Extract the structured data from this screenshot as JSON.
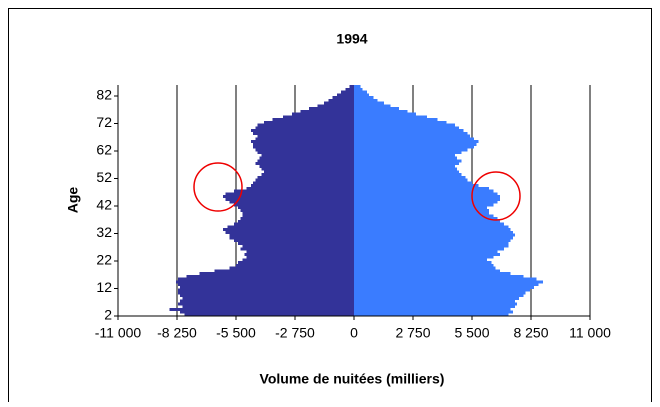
{
  "chart_data": {
    "type": "pyramid",
    "title": "1994",
    "xlabel": "Volume de nuitées (milliers)",
    "ylabel": "Age",
    "y": [
      2,
      3,
      4,
      5,
      6,
      7,
      8,
      9,
      10,
      11,
      12,
      13,
      14,
      15,
      16,
      17,
      18,
      19,
      20,
      21,
      22,
      23,
      24,
      25,
      26,
      27,
      28,
      29,
      30,
      31,
      32,
      33,
      34,
      35,
      36,
      37,
      38,
      39,
      40,
      41,
      42,
      43,
      44,
      45,
      46,
      47,
      48,
      49,
      50,
      51,
      52,
      53,
      54,
      55,
      56,
      57,
      58,
      59,
      60,
      61,
      62,
      63,
      64,
      65,
      66,
      67,
      68,
      69,
      70,
      71,
      72,
      73,
      74,
      75,
      76,
      77,
      78,
      79,
      80,
      81,
      82,
      83,
      84,
      85
    ],
    "series": [
      {
        "color": "#333399",
        "values": [
          -7900,
          -8100,
          -8600,
          -8000,
          -8200,
          -8100,
          -8000,
          -8100,
          -8200,
          -8200,
          -8100,
          -8200,
          -8300,
          -8200,
          -7800,
          -7200,
          -6500,
          -5800,
          -5500,
          -5400,
          -5200,
          -5000,
          -5100,
          -5000,
          -5300,
          -5200,
          -5400,
          -5600,
          -5800,
          -5800,
          -6000,
          -6100,
          -5900,
          -5600,
          -5400,
          -5300,
          -5200,
          -5200,
          -5300,
          -5400,
          -5600,
          -5800,
          -6000,
          -6100,
          -6000,
          -5600,
          -5000,
          -4800,
          -4700,
          -4600,
          -4500,
          -4300,
          -4200,
          -4300,
          -4400,
          -4600,
          -4500,
          -4400,
          -4300,
          -4500,
          -4600,
          -4700,
          -4700,
          -4800,
          -4600,
          -4500,
          -4700,
          -4800,
          -4600,
          -4500,
          -4200,
          -3800,
          -3300,
          -2900,
          -2500,
          -2100,
          -1700,
          -1400,
          -1200,
          -1000,
          -800,
          -600,
          -400,
          -200
        ]
      },
      {
        "color": "#3a7cff",
        "values": [
          7200,
          7400,
          7300,
          7500,
          7600,
          7500,
          7700,
          7900,
          8000,
          8200,
          8400,
          8600,
          8800,
          8500,
          7900,
          7300,
          6800,
          6600,
          6500,
          6400,
          6200,
          6500,
          6800,
          6700,
          7000,
          7200,
          7200,
          7300,
          7400,
          7500,
          7400,
          7300,
          7200,
          7000,
          6800,
          6700,
          6500,
          6300,
          6300,
          6200,
          6500,
          6700,
          6800,
          6800,
          6700,
          6500,
          6300,
          5800,
          5500,
          5300,
          5200,
          5000,
          4900,
          4800,
          4700,
          4900,
          5000,
          4800,
          4700,
          5000,
          5300,
          5600,
          5700,
          5800,
          5600,
          5400,
          5300,
          5100,
          4900,
          4700,
          4300,
          3900,
          3400,
          2900,
          2500,
          2100,
          1700,
          1400,
          1100,
          900,
          700,
          600,
          400,
          300
        ]
      }
    ],
    "xlim": [
      -11000,
      11000
    ],
    "xticks": [
      {
        "value": -11000,
        "label": "-11 000"
      },
      {
        "value": -8250,
        "label": "-8 250"
      },
      {
        "value": -5500,
        "label": "-5 500"
      },
      {
        "value": -2750,
        "label": "-2 750"
      },
      0,
      {
        "value": 2750,
        "label": "2 750"
      },
      {
        "value": 5500,
        "label": "5 500"
      },
      {
        "value": 8250,
        "label": "8 250"
      },
      {
        "value": 11000,
        "label": "11 000"
      }
    ],
    "ylim": [
      2,
      86
    ],
    "yticks": [
      2,
      12,
      22,
      32,
      42,
      52,
      62,
      72,
      82
    ],
    "grid": true
  }
}
